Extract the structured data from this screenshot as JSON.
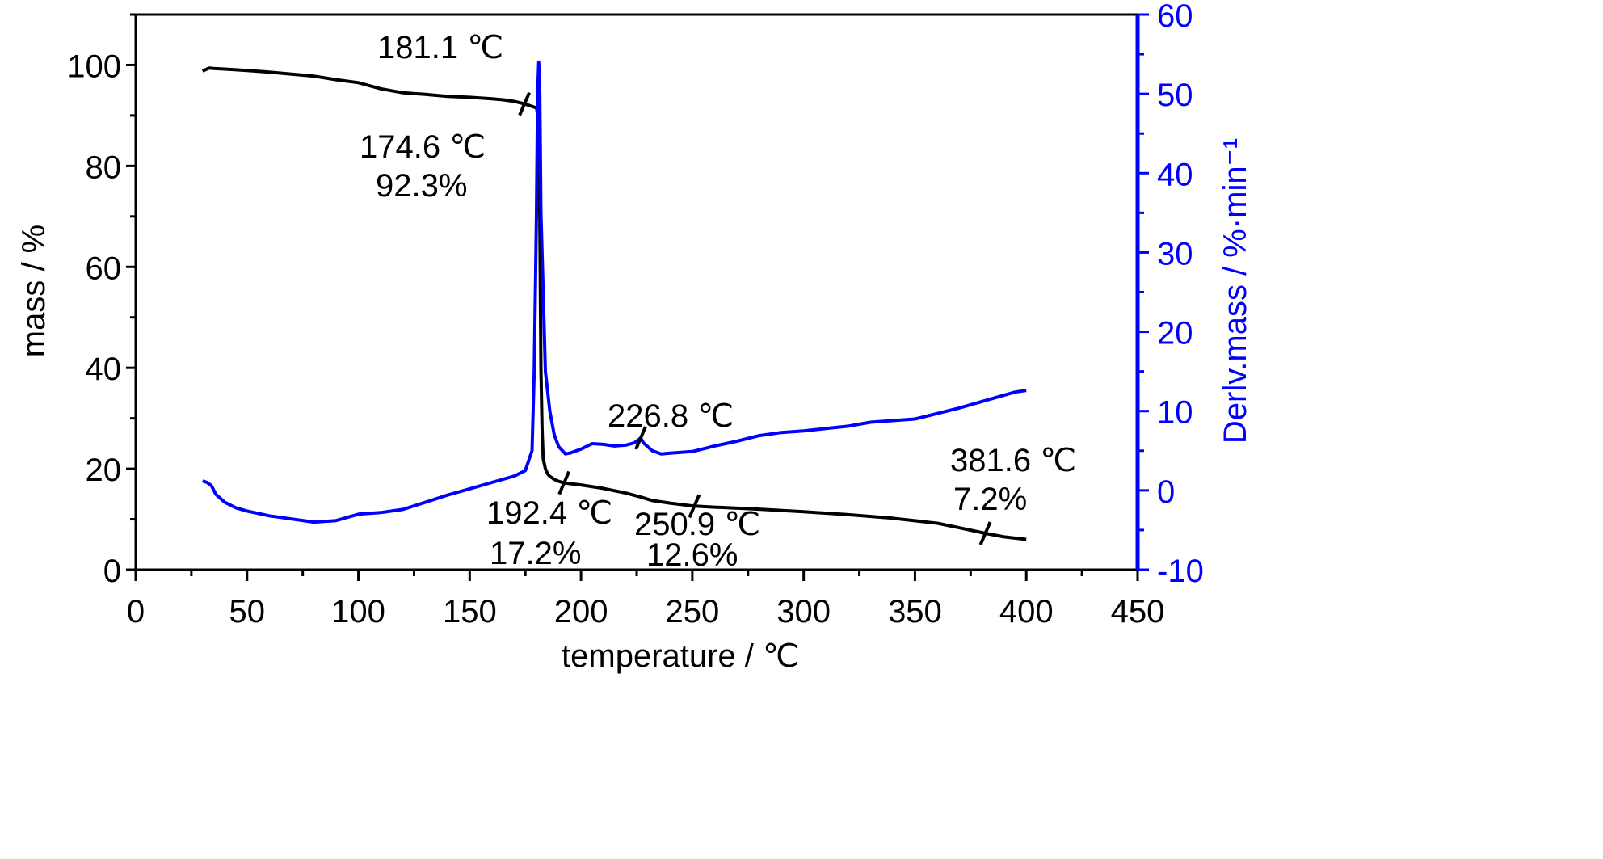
{
  "colors": {
    "mass": "#000000",
    "deriv": "#0000ff",
    "axis": "#000000",
    "axis_right": "#0000ff"
  },
  "chart_data": {
    "type": "line",
    "xlabel": "temperature / ℃",
    "ylabel_left": "mass / %",
    "ylabel_right": "Derlv.mass / %·min⁻¹",
    "xlim": [
      0,
      450
    ],
    "ylim_left": [
      0,
      110
    ],
    "ylim_right": [
      -10,
      60
    ],
    "x_ticks": [
      0,
      50,
      100,
      150,
      200,
      250,
      300,
      350,
      400,
      450
    ],
    "y_left_ticks": [
      0,
      20,
      40,
      60,
      80,
      100
    ],
    "y_right_ticks": [
      -10,
      0,
      10,
      20,
      30,
      40,
      50,
      60
    ],
    "grid": false,
    "series": [
      {
        "axis": "left",
        "x": [
          30,
          31,
          33,
          35,
          40,
          50,
          60,
          70,
          80,
          90,
          100,
          110,
          120,
          130,
          140,
          150,
          160,
          165,
          170,
          174.6,
          178,
          180,
          181,
          181.5,
          182,
          182.5,
          183,
          184,
          185,
          186,
          188,
          190,
          192.4,
          200,
          210,
          220,
          226.8,
          232,
          240,
          250.9,
          260,
          280,
          300,
          320,
          340,
          360,
          370,
          381.6,
          390,
          400
        ],
        "y": [
          98.8,
          99.0,
          99.4,
          99.3,
          99.2,
          98.9,
          98.6,
          98.2,
          97.8,
          97.1,
          96.5,
          95.3,
          94.5,
          94.2,
          93.8,
          93.6,
          93.3,
          93.1,
          92.8,
          92.3,
          91.8,
          91.5,
          89.0,
          70.0,
          40.0,
          28.0,
          22.0,
          20.0,
          19.0,
          18.5,
          17.9,
          17.5,
          17.2,
          16.8,
          16.1,
          15.2,
          14.4,
          13.7,
          13.2,
          12.6,
          12.4,
          12.0,
          11.5,
          10.9,
          10.2,
          9.2,
          8.3,
          7.2,
          6.5,
          6.0
        ]
      },
      {
        "axis": "right",
        "x": [
          30,
          32,
          34,
          36,
          40,
          45,
          50,
          60,
          70,
          80,
          90,
          100,
          110,
          120,
          130,
          140,
          150,
          160,
          170,
          175,
          178,
          179,
          180,
          180.5,
          181,
          181.5,
          182,
          183,
          184,
          186,
          188,
          190,
          193,
          195,
          200,
          205,
          210,
          215,
          220,
          224,
          226.8,
          228,
          232,
          236,
          240,
          250,
          260,
          270,
          280,
          290,
          300,
          310,
          320,
          330,
          340,
          350,
          360,
          370,
          380,
          390,
          395,
          400
        ],
        "y": [
          1.2,
          1.0,
          0.6,
          -0.5,
          -1.5,
          -2.2,
          -2.6,
          -3.2,
          -3.6,
          -4.0,
          -3.8,
          -3.0,
          -2.8,
          -2.4,
          -1.5,
          -0.6,
          0.2,
          1.0,
          1.8,
          2.5,
          5.0,
          15.0,
          35.0,
          50.0,
          54.0,
          50.0,
          35.0,
          25.0,
          15.0,
          10.0,
          7.0,
          5.5,
          4.6,
          4.7,
          5.2,
          5.9,
          5.8,
          5.6,
          5.7,
          6.0,
          6.6,
          6.0,
          5.0,
          4.6,
          4.7,
          4.9,
          5.6,
          6.2,
          6.9,
          7.3,
          7.5,
          7.8,
          8.1,
          8.6,
          8.8,
          9.0,
          9.7,
          10.4,
          11.2,
          12.0,
          12.4,
          12.6
        ]
      }
    ],
    "annotations": [
      {
        "text": "181.1 ℃"
      },
      {
        "text": "174.6 ℃"
      },
      {
        "text": "92.3%"
      },
      {
        "text": "226.8 ℃"
      },
      {
        "text": "192.4 ℃"
      },
      {
        "text": "17.2%"
      },
      {
        "text": "250.9 ℃"
      },
      {
        "text": "12.6%"
      },
      {
        "text": "381.6 ℃"
      },
      {
        "text": "7.2%"
      }
    ],
    "markers": [
      {
        "x": 174.6,
        "y": 92.3
      },
      {
        "x": 192.4,
        "y": 17.2
      },
      {
        "x": 250.9,
        "y": 12.6
      },
      {
        "x": 381.6,
        "y": 7.2
      },
      {
        "x": 226.8,
        "y_right": 6.6
      }
    ]
  }
}
